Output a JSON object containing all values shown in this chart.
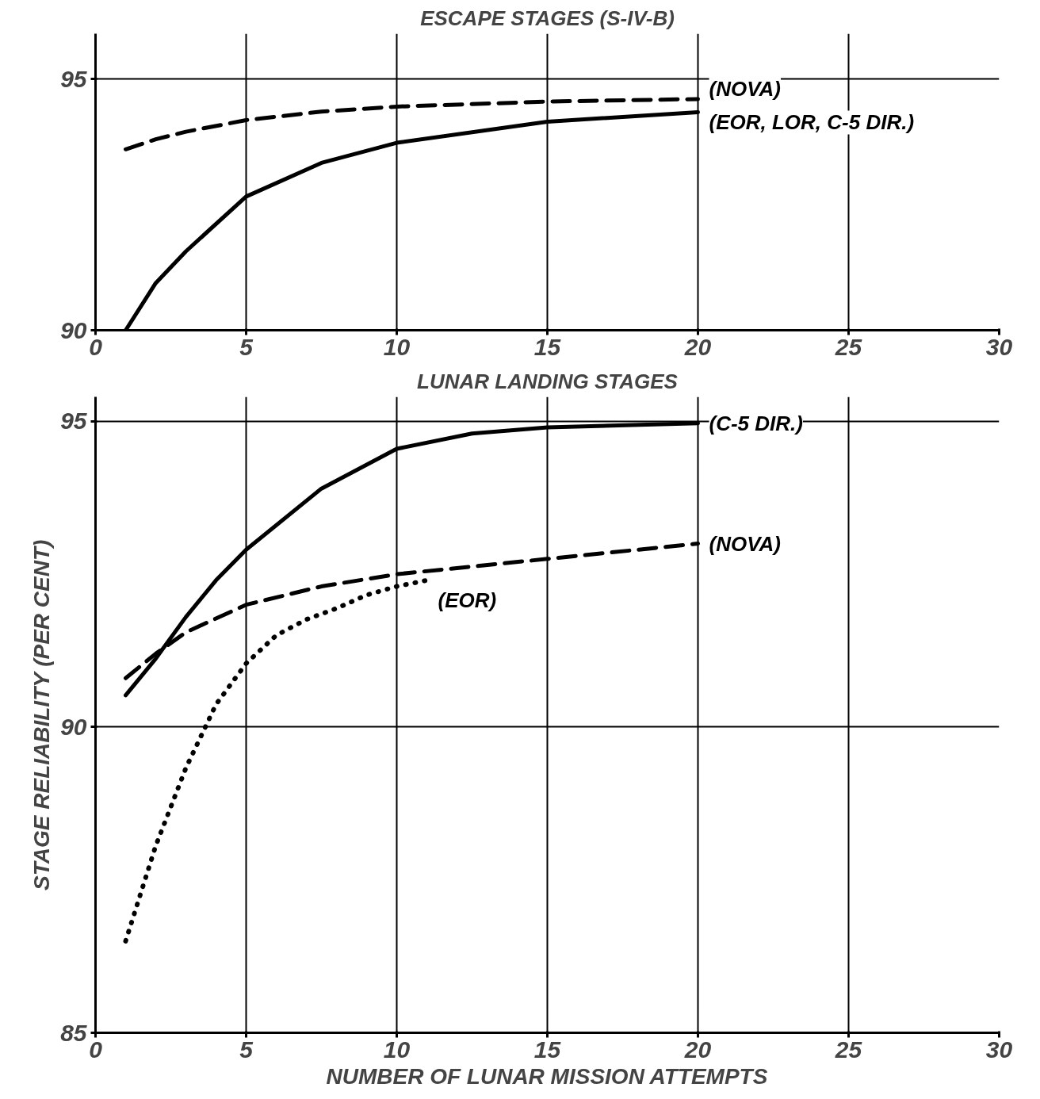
{
  "chart_data": [
    {
      "type": "line",
      "title": "ESCAPE STAGES (S-IV-B)",
      "xlim": [
        0,
        30
      ],
      "xticks": [
        0,
        5,
        10,
        15,
        20,
        25,
        30
      ],
      "ylim": [
        90,
        95.9
      ],
      "yticks": [
        90,
        95
      ],
      "grid": true,
      "marker": "none",
      "series": [
        {
          "name": "(NOVA)",
          "color": "#000000",
          "line_style": "dashed",
          "x": [
            1,
            2,
            3,
            5,
            7.5,
            10,
            15,
            20
          ],
          "values": [
            93.6,
            93.8,
            93.95,
            94.18,
            94.35,
            94.45,
            94.55,
            94.6
          ]
        },
        {
          "name": "(EOR, LOR, C-5 DIR.)",
          "color": "#000000",
          "line_style": "solid",
          "x": [
            1,
            2,
            3,
            5,
            7.5,
            10,
            15,
            20
          ],
          "values": [
            90.0,
            90.94,
            91.57,
            92.66,
            93.33,
            93.73,
            94.15,
            94.34
          ]
        }
      ]
    },
    {
      "type": "line",
      "title": "LUNAR LANDING STAGES",
      "xlabel": "NUMBER OF LUNAR MISSION ATTEMPTS",
      "ylabel": "STAGE RELIABILITY (PER CENT)",
      "xlim": [
        0,
        30
      ],
      "xticks": [
        0,
        5,
        10,
        15,
        20,
        25,
        30
      ],
      "ylim": [
        85,
        95.4
      ],
      "yticks": [
        85,
        90,
        95
      ],
      "grid": true,
      "marker": "none",
      "series": [
        {
          "name": "(C-5 DIR.)",
          "color": "#000000",
          "line_style": "solid",
          "x": [
            1,
            2,
            3,
            4,
            5,
            7.5,
            10,
            12.5,
            15,
            20
          ],
          "values": [
            90.52,
            91.12,
            91.8,
            92.4,
            92.9,
            93.9,
            94.55,
            94.8,
            94.9,
            94.97
          ]
        },
        {
          "name": "(NOVA)",
          "color": "#000000",
          "line_style": "dashed",
          "x": [
            1,
            2,
            3,
            5,
            7.5,
            10,
            15,
            20
          ],
          "values": [
            90.8,
            91.2,
            91.55,
            92.0,
            92.3,
            92.5,
            92.75,
            93.0
          ]
        },
        {
          "name": "(EOR)",
          "color": "#000000",
          "line_style": "dotted",
          "x": [
            1,
            2,
            3,
            4,
            5,
            6,
            7,
            8,
            9,
            10,
            11
          ],
          "values": [
            86.5,
            88.06,
            89.33,
            90.37,
            91.04,
            91.5,
            91.76,
            91.94,
            92.16,
            92.3,
            92.4
          ]
        }
      ]
    }
  ]
}
